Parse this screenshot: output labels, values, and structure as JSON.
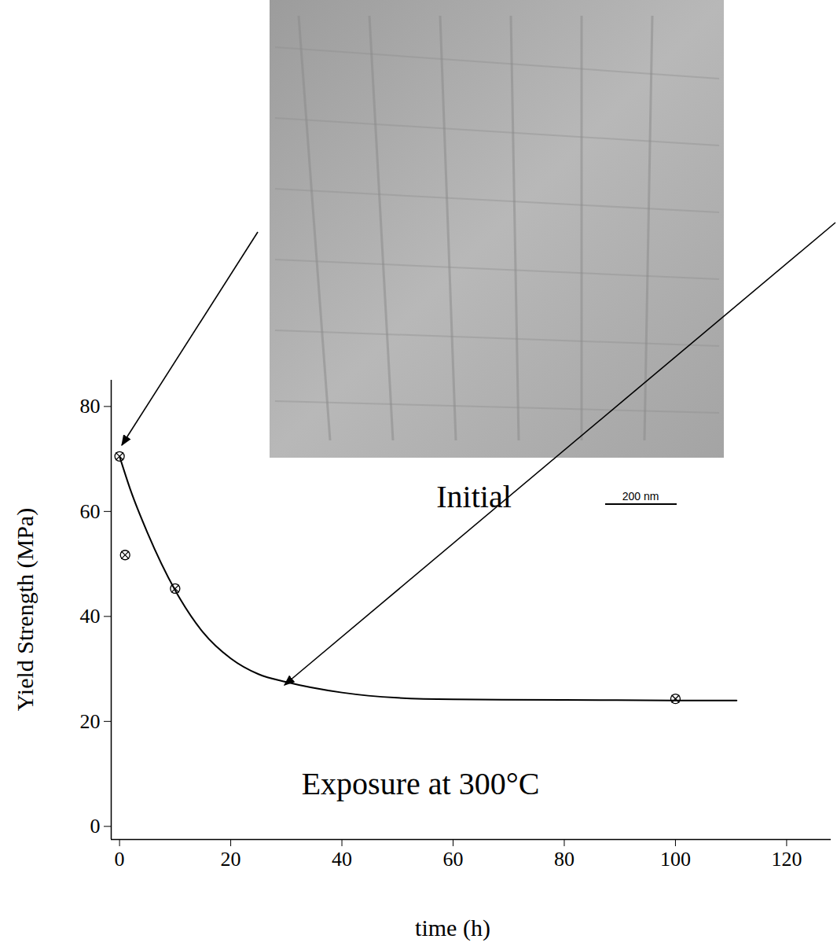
{
  "chart_data": {
    "type": "scatter",
    "x_label": "time (h)",
    "y_label": "Yield Strength (MPa)",
    "annotations": [
      "Initial",
      "200 nm",
      "Exposure at 300°C"
    ],
    "xlim": [
      -1.5,
      128
    ],
    "xticks": [
      0,
      20,
      40,
      60,
      80,
      100,
      120
    ],
    "ylim": [
      -2.5,
      85
    ],
    "yticks": [
      0,
      20,
      40,
      60,
      80
    ],
    "grid": false,
    "series": [
      {
        "type": "scatter",
        "marker": "circle-x",
        "color": "#000000",
        "x": [
          0,
          1,
          10,
          100
        ],
        "values": [
          70.5,
          51.7,
          45.3,
          24.3
        ]
      },
      {
        "type": "line",
        "line_style": "solid",
        "color": "#000000",
        "x": [
          0,
          2,
          5,
          10,
          15,
          20,
          25,
          30,
          40,
          50,
          60,
          80,
          100,
          111
        ],
        "values": [
          70.5,
          64,
          56,
          45,
          37,
          32,
          29,
          27.5,
          25.5,
          24.5,
          24.2,
          24.1,
          24,
          24
        ]
      }
    ]
  }
}
